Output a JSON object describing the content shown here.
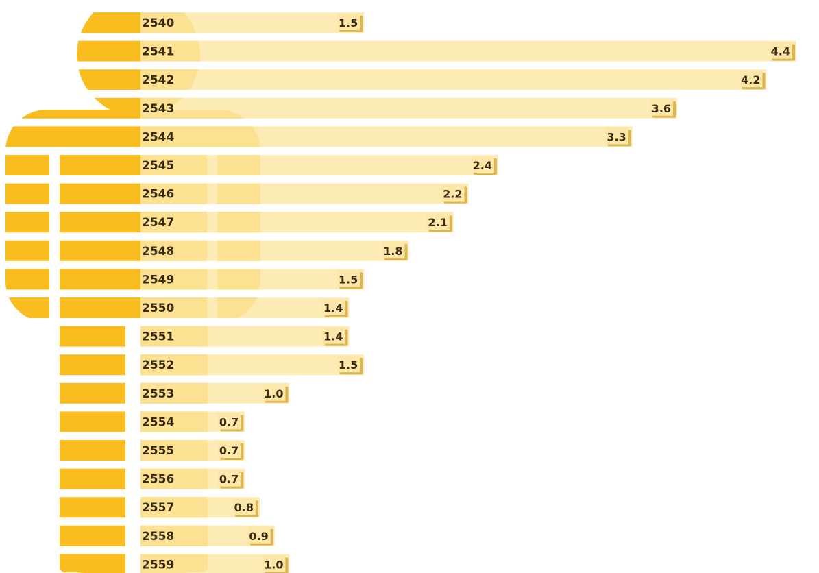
{
  "colors": {
    "figure": "#f9bd1f",
    "bar": "#fde7a8",
    "bar_edge": "#f5d27a",
    "label_shadow": "#c08a00",
    "text": "#3a2a10",
    "background": "#ffffff"
  },
  "chart_data": {
    "type": "bar",
    "orientation": "horizontal",
    "title": "",
    "xlabel": "",
    "ylabel": "",
    "xlim": [
      0,
      4.6
    ],
    "grid": false,
    "legend": "none",
    "categories": [
      "2540",
      "2541",
      "2542",
      "2543",
      "2544",
      "2545",
      "2546",
      "2547",
      "2548",
      "2549",
      "2550",
      "2551",
      "2552",
      "2553",
      "2554",
      "2555",
      "2556",
      "2557",
      "2558",
      "2559"
    ],
    "values": [
      1.5,
      4.4,
      4.2,
      3.6,
      3.3,
      2.4,
      2.2,
      2.1,
      1.8,
      1.5,
      1.4,
      1.4,
      1.5,
      1.0,
      0.7,
      0.7,
      0.7,
      0.8,
      0.9,
      1.0
    ],
    "value_labels": [
      "1.5",
      "4.4",
      "4.2",
      "3.6",
      "3.3",
      "2.4",
      "2.2",
      "2.1",
      "1.8",
      "1.5",
      "1.4",
      "1.4",
      "1.5",
      "1.0",
      "0.7",
      "0.7",
      "0.7",
      "0.8",
      "0.9",
      "1.0"
    ]
  }
}
